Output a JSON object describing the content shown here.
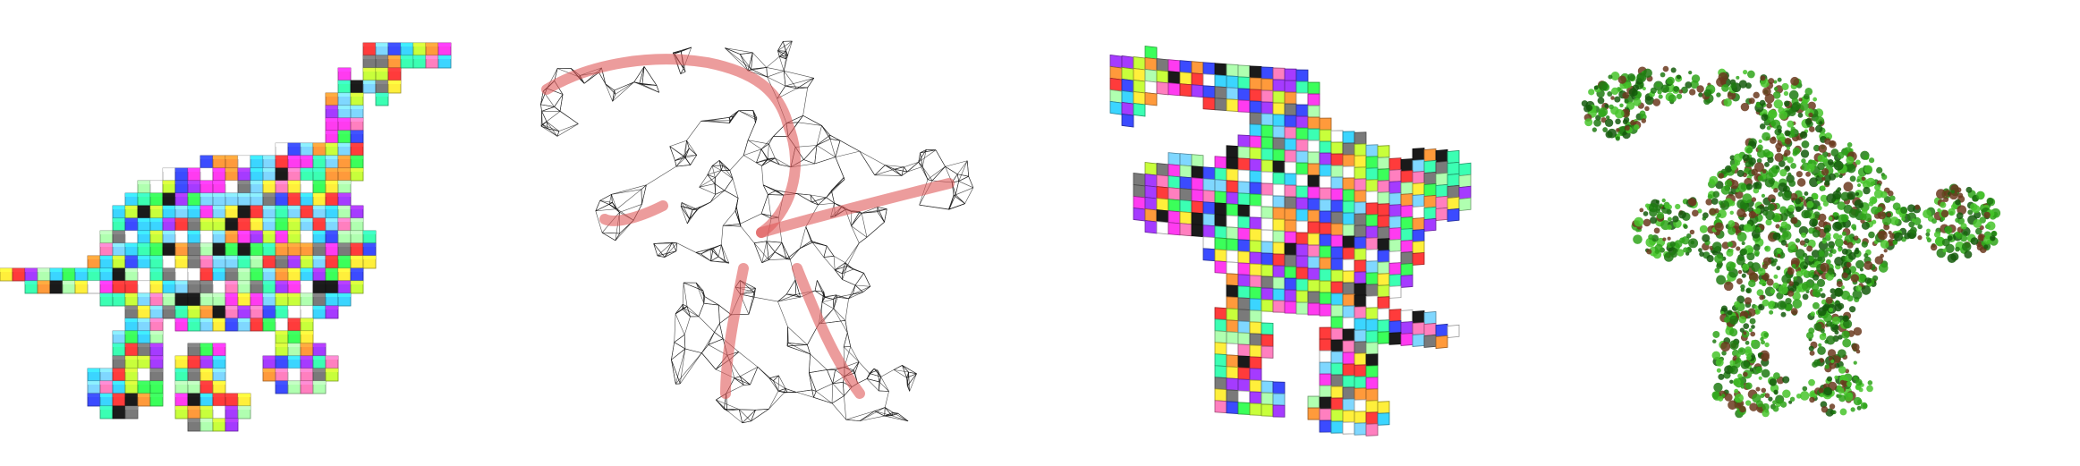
{
  "figure": {
    "panels": [
      {
        "id": "voxel-dino",
        "kind": "voxelized dinosaur with randomly colored cubes"
      },
      {
        "id": "wireframe-dino",
        "kind": "tetrahedral wireframe mesh with red skeleton"
      },
      {
        "id": "deformed-voxel-dino",
        "kind": "deformed voxel dinosaur with colored cubes"
      },
      {
        "id": "green-dino",
        "kind": "deformed dinosaur rendered as green foliage"
      }
    ],
    "palette": [
      "#ff3b3b",
      "#ffef3b",
      "#3bff5a",
      "#3bd5ff",
      "#3b4bff",
      "#ff3bf0",
      "#ffffff",
      "#1a1a1a",
      "#ff9a3b",
      "#a53bff",
      "#3bffb3",
      "#c8ff3b",
      "#7a7a7a",
      "#ff7fbf",
      "#7fd7ff",
      "#b0ffb0"
    ],
    "accent_red": "#e05a5a",
    "wire_color": "#111111",
    "foliage_colors": [
      "#1f7a12",
      "#2fa51a",
      "#47c42a",
      "#145a0c",
      "#6b3a1e"
    ]
  }
}
